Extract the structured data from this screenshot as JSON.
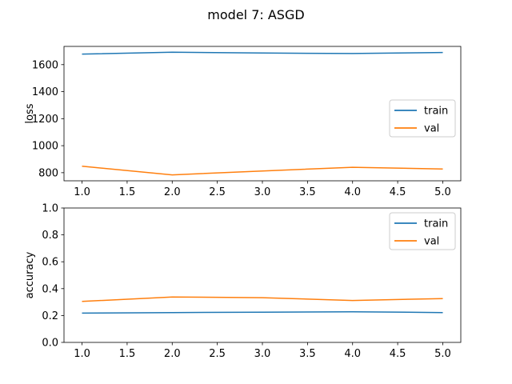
{
  "figure": {
    "title": "model 7: ASGD"
  },
  "colors": {
    "train": "#1f77b4",
    "val": "#ff7f0e"
  },
  "chart_data": [
    {
      "type": "line",
      "id": "loss",
      "xlabel": "",
      "ylabel": "loss",
      "x": [
        1,
        2,
        3,
        4,
        5
      ],
      "xlim": [
        0.8,
        5.2
      ],
      "ylim": [
        740,
        1735
      ],
      "xticks": [
        1.0,
        1.5,
        2.0,
        2.5,
        3.0,
        3.5,
        4.0,
        4.5,
        5.0
      ],
      "xtick_labels": [
        "1.0",
        "1.5",
        "2.0",
        "2.5",
        "3.0",
        "3.5",
        "4.0",
        "4.5",
        "5.0"
      ],
      "yticks": [
        800,
        1000,
        1200,
        1400,
        1600
      ],
      "ytick_labels": [
        "800",
        "1000",
        "1200",
        "1400",
        "1600"
      ],
      "legend": "center-right",
      "grid": false,
      "series": [
        {
          "name": "train",
          "values": [
            1678,
            1692,
            1686,
            1682,
            1690
          ]
        },
        {
          "name": "val",
          "values": [
            848,
            784,
            813,
            840,
            827
          ]
        }
      ]
    },
    {
      "type": "line",
      "id": "accuracy",
      "xlabel": "",
      "ylabel": "accuracy",
      "x": [
        1,
        2,
        3,
        4,
        5
      ],
      "xlim": [
        0.8,
        5.2
      ],
      "ylim": [
        0.0,
        1.0
      ],
      "xticks": [
        1.0,
        1.5,
        2.0,
        2.5,
        3.0,
        3.5,
        4.0,
        4.5,
        5.0
      ],
      "xtick_labels": [
        "1.0",
        "1.5",
        "2.0",
        "2.5",
        "3.0",
        "3.5",
        "4.0",
        "4.5",
        "5.0"
      ],
      "yticks": [
        0.0,
        0.2,
        0.4,
        0.6,
        0.8,
        1.0
      ],
      "ytick_labels": [
        "0.0",
        "0.2",
        "0.4",
        "0.6",
        "0.8",
        "1.0"
      ],
      "legend": "top-right",
      "grid": false,
      "series": [
        {
          "name": "train",
          "values": [
            0.218,
            0.222,
            0.225,
            0.228,
            0.222
          ]
        },
        {
          "name": "val",
          "values": [
            0.305,
            0.338,
            0.333,
            0.312,
            0.326
          ]
        }
      ]
    }
  ]
}
